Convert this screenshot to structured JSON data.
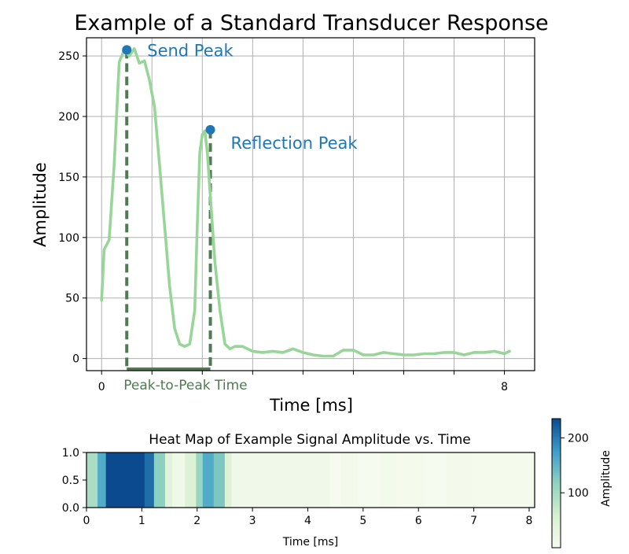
{
  "chart_data": [
    {
      "type": "line",
      "title": "Example of a Standard Transducer Response",
      "xlabel": "Time [ms]",
      "ylabel": "Amplitude",
      "xlim": [
        -0.3,
        8.6
      ],
      "ylim": [
        -10,
        265
      ],
      "x_ticks": [
        0,
        8
      ],
      "y_ticks": [
        0,
        50,
        100,
        150,
        200,
        250
      ],
      "grid": true,
      "line_color": "#98d598",
      "series": [
        {
          "x": [
            0.0,
            0.05,
            0.15,
            0.25,
            0.35,
            0.45,
            0.55,
            0.65,
            0.75,
            0.85,
            0.95,
            1.05,
            1.15,
            1.25,
            1.35,
            1.45,
            1.55,
            1.6,
            1.65,
            1.75,
            1.85,
            1.9,
            1.95,
            2.0,
            2.05,
            2.1,
            2.15,
            2.25,
            2.35,
            2.45,
            2.55,
            2.6,
            2.65,
            2.8,
            3.0,
            3.2,
            3.4,
            3.6,
            3.8,
            4.0,
            4.2,
            4.4,
            4.6,
            4.8,
            5.0,
            5.2,
            5.4,
            5.6,
            5.8,
            6.0,
            6.2,
            6.4,
            6.6,
            6.8,
            7.0,
            7.2,
            7.4,
            7.6,
            7.8,
            8.0,
            8.1
          ],
          "y": [
            48,
            90,
            98,
            160,
            245,
            255,
            250,
            256,
            244,
            246,
            230,
            208,
            160,
            110,
            60,
            25,
            12,
            11,
            10,
            12,
            40,
            110,
            170,
            185,
            188,
            170,
            140,
            80,
            40,
            12,
            8,
            9,
            10,
            10,
            6,
            5,
            6,
            5,
            8,
            5,
            3,
            2,
            2,
            7,
            7,
            3,
            3,
            5,
            4,
            3,
            3,
            4,
            4,
            5,
            5,
            3,
            5,
            5,
            6,
            4,
            6
          ]
        }
      ],
      "markers": [
        {
          "name": "Send Peak",
          "x": 0.5,
          "y": 255,
          "color": "#1f77b4"
        },
        {
          "name": "Reflection Peak",
          "x": 2.16,
          "y": 189,
          "color": "#1f77b4"
        }
      ],
      "annotation": {
        "text": "Peak-to-Peak Time",
        "x_start": 0.5,
        "x_end": 2.16,
        "color": "#4f7a52"
      }
    },
    {
      "type": "heatmap",
      "title": "Heat Map of Example Signal Amplitude vs. Time",
      "xlabel": "Time [ms]",
      "xlim": [
        0,
        8.1
      ],
      "ylim": [
        0,
        1
      ],
      "x_ticks": [
        0,
        1,
        2,
        3,
        4,
        5,
        6,
        7,
        8
      ],
      "y_ticks": [
        0.0,
        0.5,
        1.0
      ],
      "colorbar": {
        "label": "Amplitude",
        "min": 0,
        "max": 235,
        "ticks": [
          100,
          200
        ]
      },
      "cells": [
        {
          "x0": 0.0,
          "x1": 0.2,
          "value": 95
        },
        {
          "x0": 0.2,
          "x1": 0.35,
          "value": 160
        },
        {
          "x0": 0.35,
          "x1": 1.05,
          "value": 235
        },
        {
          "x0": 1.05,
          "x1": 1.22,
          "value": 210
        },
        {
          "x0": 1.22,
          "x1": 1.42,
          "value": 120
        },
        {
          "x0": 1.42,
          "x1": 1.55,
          "value": 40
        },
        {
          "x0": 1.55,
          "x1": 1.78,
          "value": 15
        },
        {
          "x0": 1.78,
          "x1": 1.98,
          "value": 50
        },
        {
          "x0": 1.98,
          "x1": 2.1,
          "value": 110
        },
        {
          "x0": 2.1,
          "x1": 2.3,
          "value": 160
        },
        {
          "x0": 2.3,
          "x1": 2.5,
          "value": 130
        },
        {
          "x0": 2.5,
          "x1": 2.62,
          "value": 45
        },
        {
          "x0": 2.62,
          "x1": 4.4,
          "value": 12
        },
        {
          "x0": 4.4,
          "x1": 4.6,
          "value": 4
        },
        {
          "x0": 4.6,
          "x1": 4.9,
          "value": 8
        },
        {
          "x0": 4.9,
          "x1": 5.3,
          "value": 3
        },
        {
          "x0": 5.3,
          "x1": 5.6,
          "value": 10
        },
        {
          "x0": 5.6,
          "x1": 6.1,
          "value": 5
        },
        {
          "x0": 6.1,
          "x1": 6.5,
          "value": 3
        },
        {
          "x0": 6.5,
          "x1": 7.0,
          "value": 7
        },
        {
          "x0": 7.0,
          "x1": 7.6,
          "value": 5
        },
        {
          "x0": 7.6,
          "x1": 8.1,
          "value": 6
        }
      ]
    }
  ]
}
